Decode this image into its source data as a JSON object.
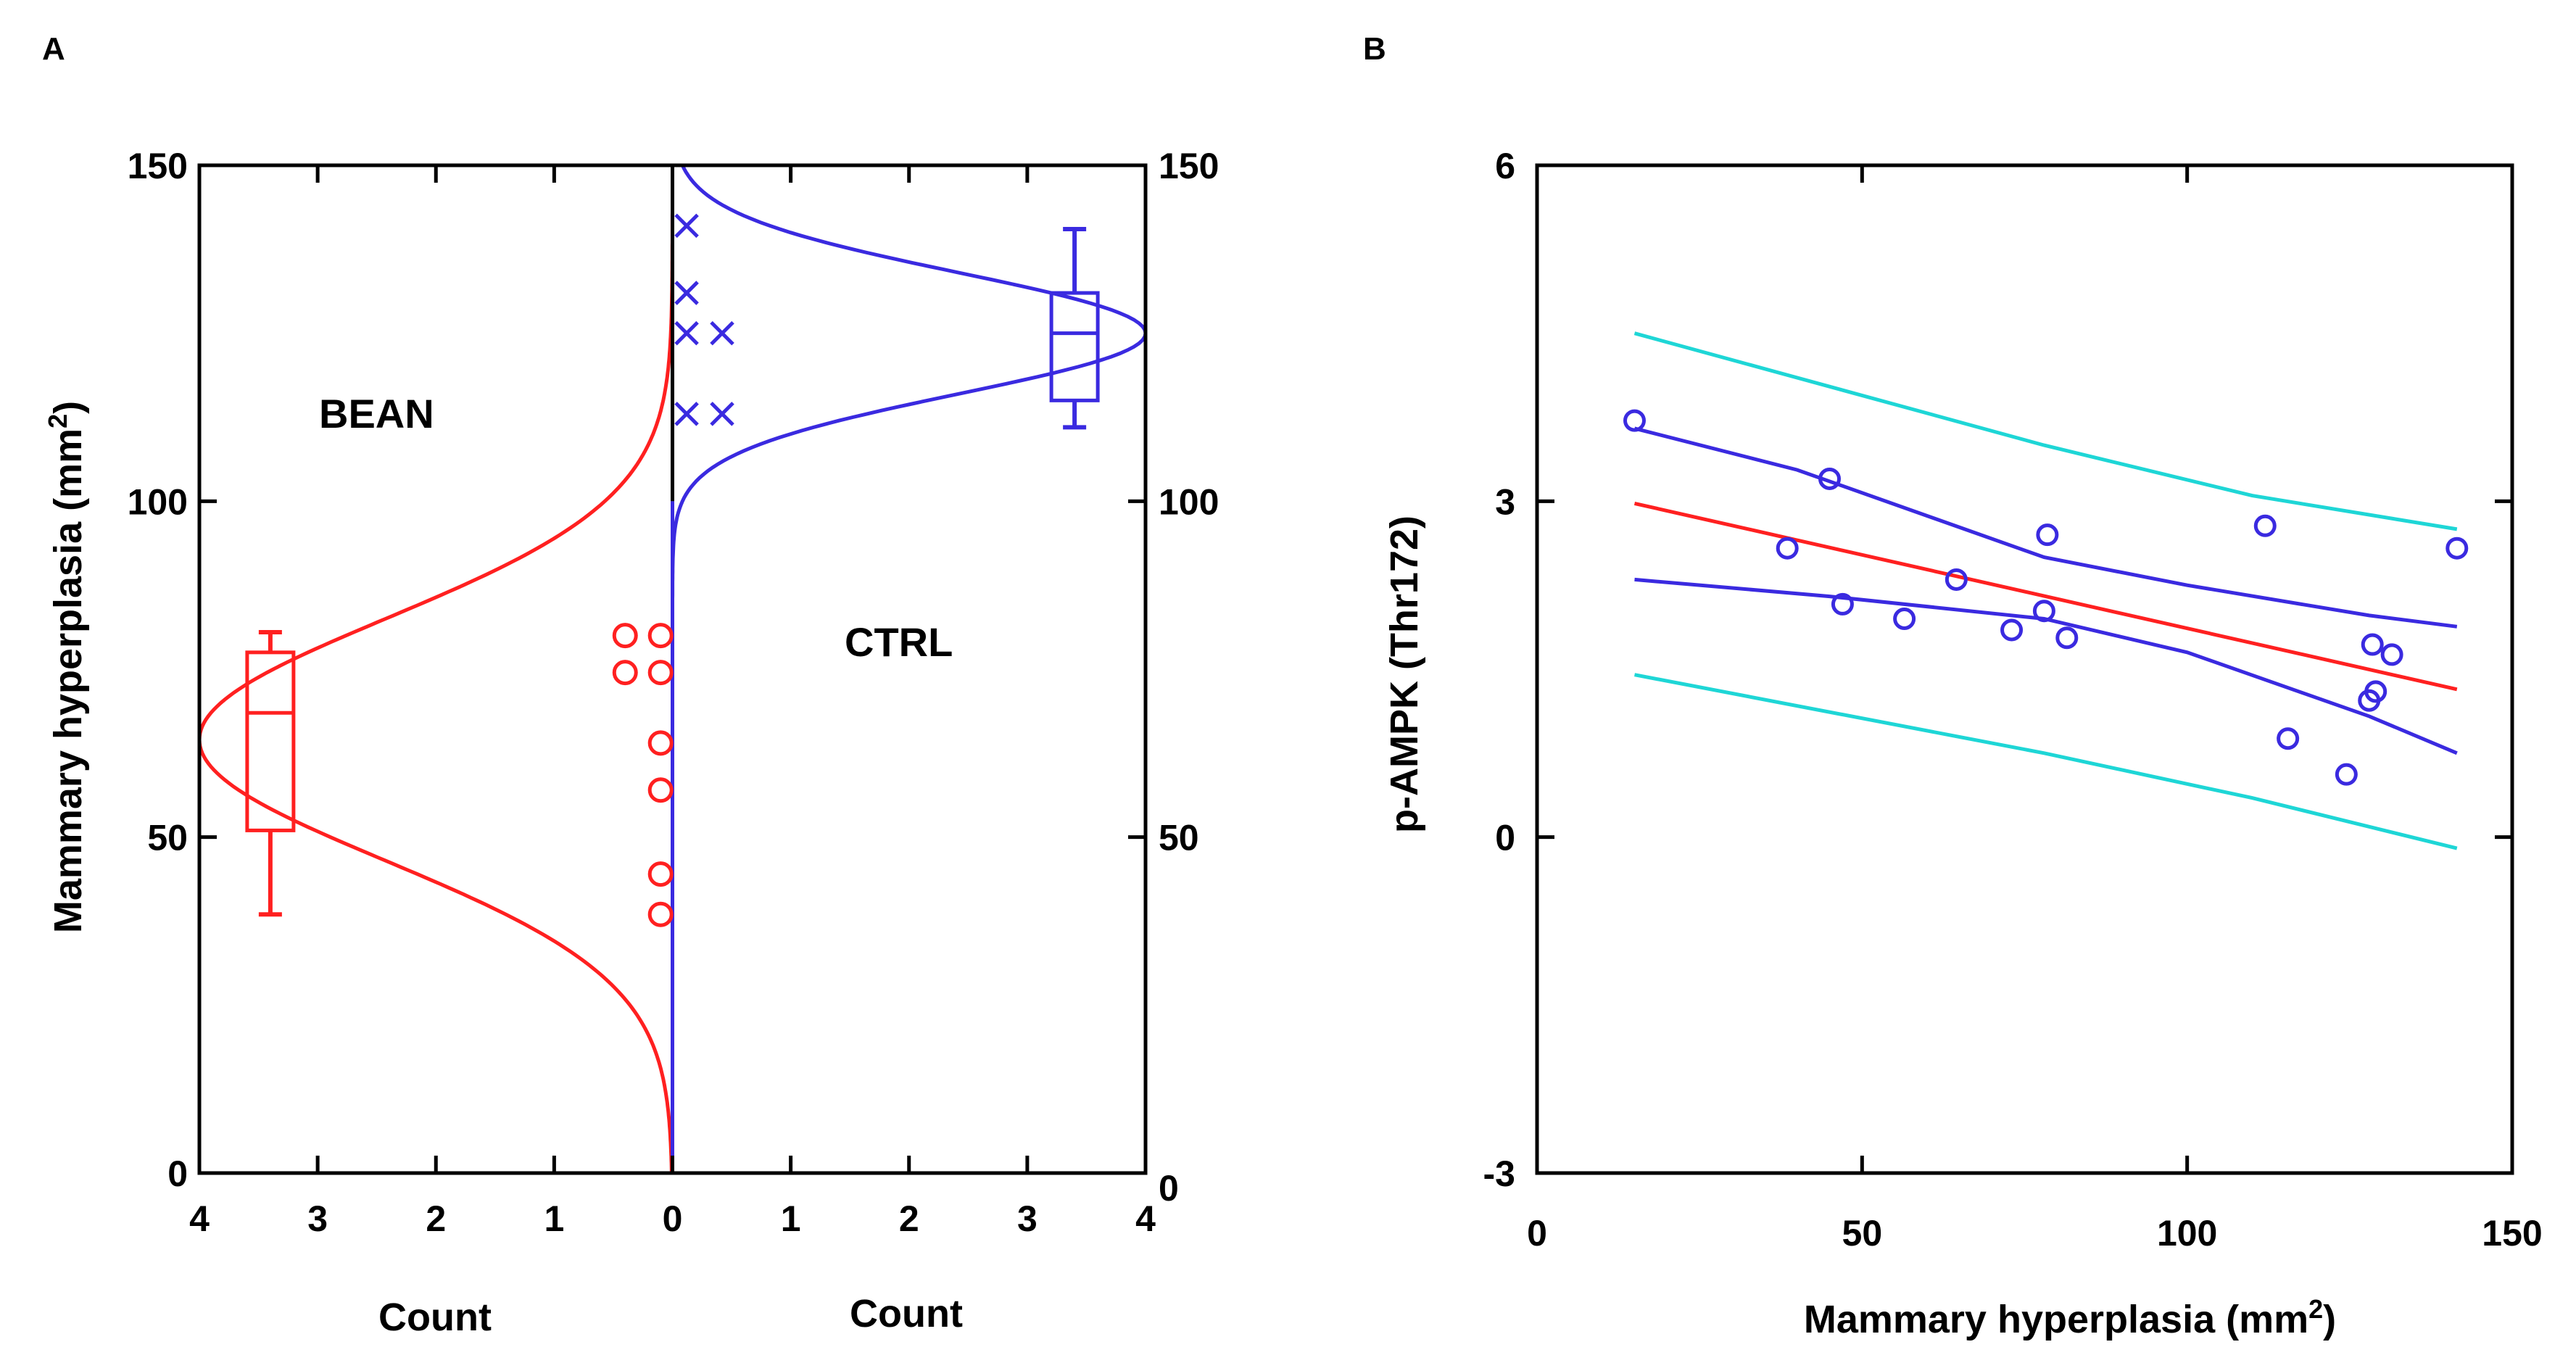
{
  "panels": {
    "A": {
      "letter": "A"
    },
    "B": {
      "letter": "B"
    }
  },
  "chart_data": [
    {
      "panel": "A",
      "type": "scatter",
      "title": "",
      "ylabel": "Mammary hyperplasia (mm²)",
      "ylabel_main": "Mammary hyperplasia (mm",
      "ylabel_sup": "2",
      "ylabel_end": ")",
      "ylim": [
        0,
        150
      ],
      "yticks": [
        "0",
        "50",
        "100",
        "150"
      ],
      "xlim": [
        -4,
        4
      ],
      "xticks": [
        "4",
        "3",
        "2",
        "1",
        "0",
        "1",
        "2",
        "3",
        "4"
      ],
      "xlabel_left": "Count",
      "xlabel_right": "Count",
      "annotations": {
        "left": "BEAN",
        "right": "CTRL"
      },
      "colors": {
        "BEAN": "#ff2020",
        "CTRL": "#3a2ae0",
        "axis": "#000000"
      },
      "series": [
        {
          "name": "BEAN",
          "marker": "circle",
          "points": [
            {
              "x": -0.4,
              "y": 80
            },
            {
              "x": -0.1,
              "y": 80
            },
            {
              "x": -0.4,
              "y": 74.5
            },
            {
              "x": -0.1,
              "y": 74.5
            },
            {
              "x": -0.1,
              "y": 64
            },
            {
              "x": -0.1,
              "y": 57
            },
            {
              "x": -0.1,
              "y": 44.5
            },
            {
              "x": -0.1,
              "y": 38.5
            }
          ],
          "boxplot": {
            "x": -3.4,
            "whisker_low": 38.5,
            "q1": 51,
            "median": 68.5,
            "q3": 77.5,
            "whisker_high": 80.5
          },
          "density": {
            "mean": 64.5,
            "sd": 18,
            "peak": 4,
            "xlim_draw": [
              0,
              150
            ]
          }
        },
        {
          "name": "CTRL",
          "marker": "x",
          "points": [
            {
              "x": 0.12,
              "y": 141
            },
            {
              "x": 0.12,
              "y": 131
            },
            {
              "x": 0.12,
              "y": 125
            },
            {
              "x": 0.42,
              "y": 125
            },
            {
              "x": 0.12,
              "y": 113
            },
            {
              "x": 0.42,
              "y": 113
            }
          ],
          "boxplot": {
            "x": 3.4,
            "whisker_low": 111,
            "q1": 115,
            "median": 125,
            "q3": 131,
            "whisker_high": 140.5
          },
          "density": {
            "mean": 125,
            "sd": 9,
            "peak": 4,
            "xlim_draw": [
              85,
              150
            ]
          }
        }
      ]
    },
    {
      "panel": "B",
      "type": "scatter",
      "title": "",
      "xlabel": "Mammary hyperplasia (mm²)",
      "xlabel_main": "Mammary hyperplasia (mm",
      "xlabel_sup": "2",
      "xlabel_end": ")",
      "ylabel": "p-AMPK (Thr172)",
      "xlim": [
        0,
        150
      ],
      "ylim": [
        -3,
        6
      ],
      "xticks": [
        "0",
        "50",
        "100",
        "150"
      ],
      "yticks": [
        "-3",
        "0",
        "3",
        "6"
      ],
      "colors": {
        "points": "#3a2ae0",
        "fit": "#ff2020",
        "ci": "#3a2ae0",
        "pi": "#1ed6d6"
      },
      "points": [
        {
          "x": 15,
          "y": 3.72
        },
        {
          "x": 38.5,
          "y": 2.58
        },
        {
          "x": 45,
          "y": 3.2
        },
        {
          "x": 47,
          "y": 2.08
        },
        {
          "x": 56.5,
          "y": 1.95
        },
        {
          "x": 64.5,
          "y": 2.3
        },
        {
          "x": 73,
          "y": 1.85
        },
        {
          "x": 78,
          "y": 2.02
        },
        {
          "x": 78.5,
          "y": 2.7
        },
        {
          "x": 81.5,
          "y": 1.78
        },
        {
          "x": 112,
          "y": 2.78
        },
        {
          "x": 115.5,
          "y": 0.88
        },
        {
          "x": 124.5,
          "y": 0.56
        },
        {
          "x": 128,
          "y": 1.22
        },
        {
          "x": 128.5,
          "y": 1.72
        },
        {
          "x": 129,
          "y": 1.3
        },
        {
          "x": 131.5,
          "y": 1.63
        },
        {
          "x": 141.5,
          "y": 2.58
        }
      ],
      "fit_line": {
        "x": [
          15,
          141.5
        ],
        "y": [
          2.98,
          1.32
        ]
      },
      "confidence_band": {
        "upper": {
          "x": [
            15,
            40,
            78,
            100,
            128,
            141.5
          ],
          "y": [
            3.65,
            3.28,
            2.5,
            2.25,
            1.98,
            1.88
          ]
        },
        "lower": {
          "x": [
            15,
            45,
            78,
            100,
            128,
            141.5
          ],
          "y": [
            2.3,
            2.15,
            1.95,
            1.65,
            1.08,
            0.75
          ]
        }
      },
      "prediction_band": {
        "upper": {
          "x": [
            15,
            78,
            110,
            141.5
          ],
          "y": [
            4.5,
            3.5,
            3.05,
            2.75
          ]
        },
        "lower": {
          "x": [
            15,
            78,
            110,
            141.5
          ],
          "y": [
            1.45,
            0.75,
            0.35,
            -0.1
          ]
        }
      }
    }
  ]
}
